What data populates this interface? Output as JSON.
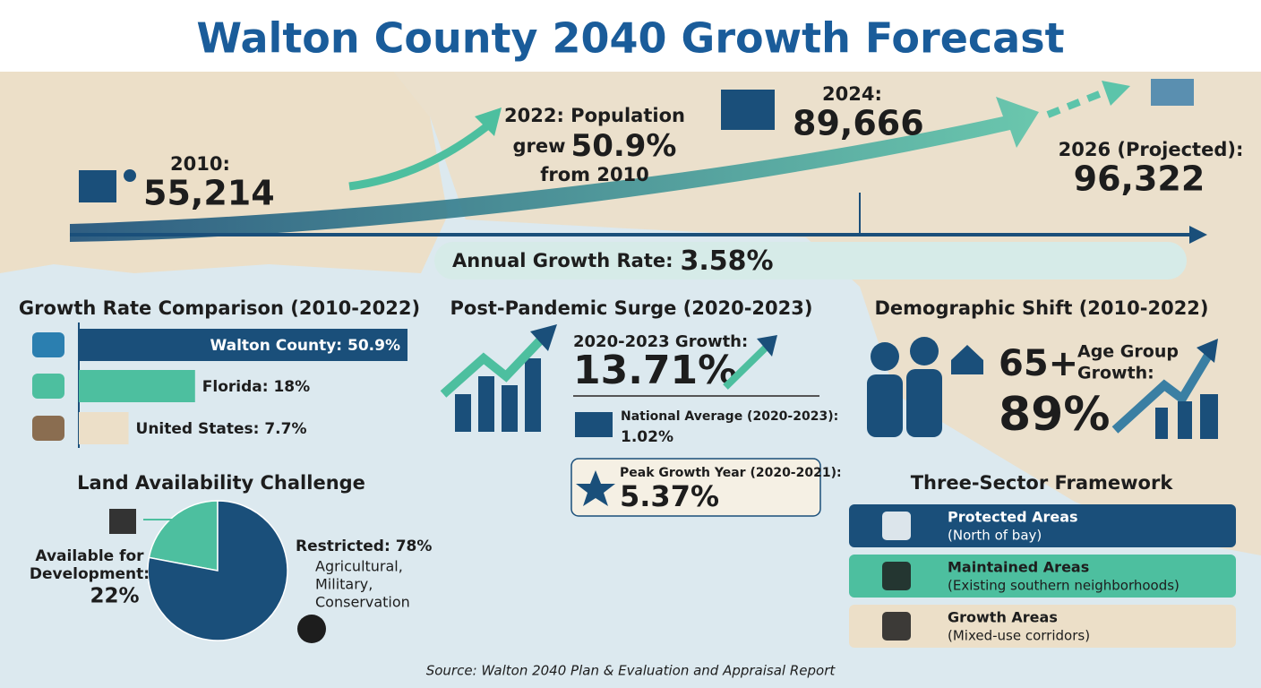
{
  "title": "Walton County 2040 Growth Forecast",
  "timeline": {
    "y2010": {
      "label": "2010:",
      "value": "55,214"
    },
    "y2022": {
      "line1": "2022: Population",
      "line2": "grew",
      "value": "50.9%",
      "line3": "from 2010"
    },
    "y2024": {
      "label": "2024:",
      "value": "89,666"
    },
    "y2026": {
      "label": "2026 (Projected):",
      "value": "96,322"
    },
    "annual_rate": {
      "label": "Annual Growth Rate:",
      "value": "3.58%"
    }
  },
  "growth_comparison": {
    "type": "bar",
    "title": "Growth Rate Comparison (2010-2022)",
    "values": [
      50.9,
      18,
      7.7
    ],
    "value_labels": [
      "Walton County: 50.9%",
      "Florida: 18%",
      "United States: 7.7%"
    ],
    "colors": [
      "#1a4f7a",
      "#4dbf9f",
      "#ecdfc8"
    ]
  },
  "land": {
    "type": "pie",
    "title": "Land Availability Challenge",
    "values": [
      22,
      78
    ],
    "value_labels": [
      "22%",
      "Restricted: 78%"
    ],
    "colors": [
      "#4dbf9f",
      "#1a4f7a"
    ],
    "available_label": [
      "Available for",
      "Development:"
    ],
    "restricted_items": [
      "Agricultural,",
      "Military,",
      "Conservation"
    ]
  },
  "post_pandemic": {
    "title": "Post-Pandemic Surge (2020-2023)",
    "growth_label": "2020-2023 Growth:",
    "growth_value": "13.71%",
    "national_label": "National Average (2020-2023):",
    "national_value": "1.02%",
    "peak_label": "Peak Growth Year (2020-2021):",
    "peak_value": "5.37%"
  },
  "demographic": {
    "title": "Demographic Shift (2010-2022)",
    "group": "65+",
    "label": [
      "Age Group",
      "Growth:"
    ],
    "value": "89%"
  },
  "framework": {
    "title": "Three-Sector Framework",
    "sectors": [
      {
        "name": "Protected Areas",
        "detail": "(North of bay)"
      },
      {
        "name": "Maintained Areas",
        "detail": "(Existing southern neighborhoods)"
      },
      {
        "name": "Growth Areas",
        "detail": "(Mixed-use corridors)"
      }
    ]
  },
  "source": "Source: Walton 2040 Plan & Evaluation and Appraisal Report"
}
